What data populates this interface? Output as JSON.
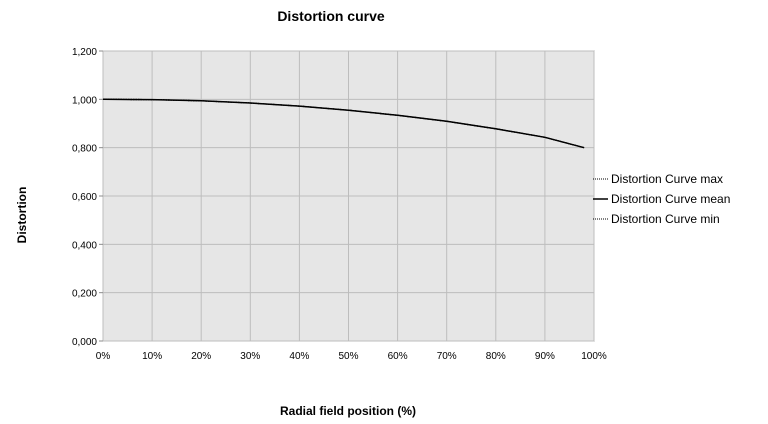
{
  "chart_data": {
    "type": "line",
    "title": "Distortion curve",
    "xlabel": "Radial field position (%)",
    "ylabel": "Distortion",
    "xlim": [
      0,
      100
    ],
    "ylim": [
      0,
      1.2
    ],
    "x_tick_labels": [
      "0%",
      "10%",
      "20%",
      "30%",
      "40%",
      "50%",
      "60%",
      "70%",
      "80%",
      "90%",
      "100%"
    ],
    "y_tick_labels": [
      "0,000",
      "0,200",
      "0,400",
      "0,600",
      "0,800",
      "1,000",
      "1,200"
    ],
    "grid": true,
    "legend_position": "right",
    "x": [
      0,
      10,
      20,
      30,
      40,
      50,
      60,
      70,
      80,
      90,
      98
    ],
    "series": [
      {
        "name": "Distortion Curve max",
        "style": "dotted",
        "values": [
          1.0,
          0.999,
          0.994,
          0.985,
          0.972,
          0.955,
          0.934,
          0.909,
          0.878,
          0.843,
          0.8
        ]
      },
      {
        "name": "Distortion Curve mean",
        "style": "solid",
        "values": [
          1.0,
          0.999,
          0.994,
          0.985,
          0.972,
          0.955,
          0.934,
          0.909,
          0.878,
          0.843,
          0.8
        ]
      },
      {
        "name": "Distortion Curve min",
        "style": "dotted",
        "values": [
          1.0,
          0.999,
          0.994,
          0.985,
          0.972,
          0.955,
          0.934,
          0.909,
          0.878,
          0.843,
          0.8
        ]
      }
    ],
    "colors": {
      "plot_background": "#e6e6e6",
      "grid": "#bdbdbd",
      "line": "#000000"
    }
  }
}
